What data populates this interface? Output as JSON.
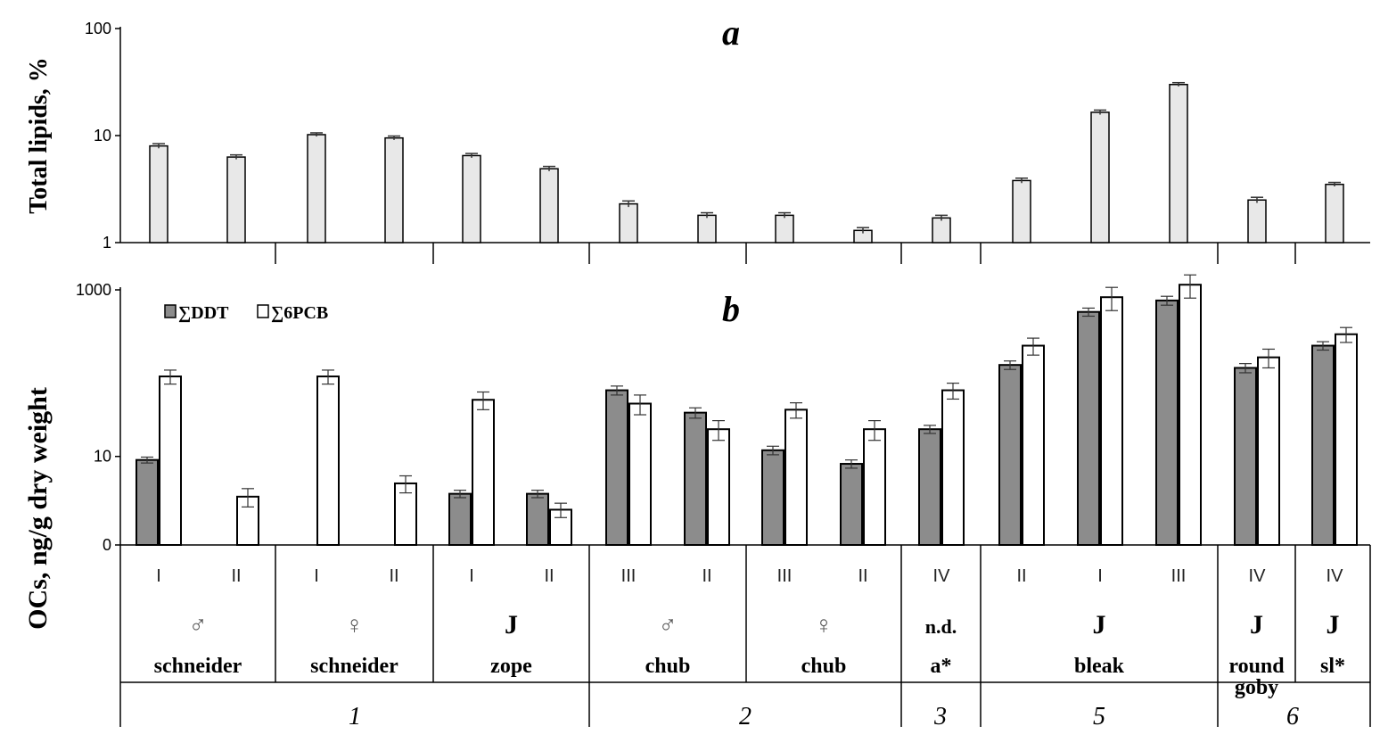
{
  "chart_data": [
    {
      "type": "bar",
      "panel_label": "a",
      "ylabel": "Total lipids, %",
      "yscale": "log",
      "ylim": [
        1,
        100
      ],
      "yticks": [
        "1",
        "10",
        "100"
      ],
      "bar_color": "#e8e8e8",
      "values": [
        8.0,
        6.3,
        10.2,
        9.5,
        6.5,
        4.9,
        2.3,
        1.8,
        1.8,
        1.3,
        1.7,
        3.8,
        16.5,
        30.0,
        2.5,
        3.5
      ],
      "errors": [
        0.4,
        0.3,
        0.4,
        0.4,
        0.3,
        0.25,
        0.15,
        0.1,
        0.1,
        0.08,
        0.1,
        0.2,
        0.8,
        1.2,
        0.15,
        0.15
      ]
    },
    {
      "type": "bar",
      "panel_label": "b",
      "ylabel": "OCs, ng/g dry weight",
      "yscale": "log1p",
      "ylim": [
        0,
        1000
      ],
      "yticks": [
        "0",
        "10",
        "1000"
      ],
      "legend_position": "top-left",
      "series": [
        {
          "name": "∑DDT",
          "color": "#8c8c8c",
          "values": [
            9.0,
            null,
            null,
            null,
            3.0,
            3.0,
            65,
            35,
            12,
            8,
            22,
            130,
            550,
            750,
            120,
            220
          ],
          "errors": [
            0.8,
            null,
            null,
            null,
            0.4,
            0.4,
            8,
            5,
            1.5,
            1,
            2.5,
            15,
            60,
            90,
            15,
            25
          ]
        },
        {
          "name": "∑6PCB",
          "color": "#ffffff",
          "values": [
            95,
            2.7,
            95,
            4.3,
            50,
            1.6,
            45,
            22,
            38,
            22,
            65,
            220,
            820,
            1150,
            160,
            300
          ],
          "errors": [
            18,
            0.9,
            18,
            1.2,
            12,
            0.5,
            12,
            6,
            8,
            6,
            14,
            50,
            250,
            350,
            40,
            60
          ]
        }
      ],
      "categories": [
        "I",
        "II",
        "I",
        "II",
        "I",
        "II",
        "III",
        "II",
        "III",
        "II",
        "IV",
        "II",
        "I",
        "III",
        "IV",
        "IV"
      ],
      "groups": [
        {
          "symbol": "♂",
          "name": "schneider",
          "span": [
            0,
            1
          ]
        },
        {
          "symbol": "♀",
          "name": "schneider",
          "span": [
            2,
            3
          ]
        },
        {
          "symbol": "J",
          "name": "zope",
          "span": [
            4,
            5
          ]
        },
        {
          "symbol": "♂",
          "name": "chub",
          "span": [
            6,
            7
          ]
        },
        {
          "symbol": "♀",
          "name": "chub",
          "span": [
            8,
            9
          ]
        },
        {
          "symbol": "n.d.",
          "name": "a*",
          "span": [
            10,
            10
          ]
        },
        {
          "symbol": "J",
          "name": "bleak",
          "span": [
            11,
            13
          ]
        },
        {
          "symbol": "J",
          "name": "round goby",
          "span": [
            14,
            14
          ]
        },
        {
          "symbol": "J",
          "name": "sl*",
          "span": [
            15,
            15
          ]
        }
      ],
      "sites": [
        {
          "label": "1",
          "span": [
            0,
            5
          ]
        },
        {
          "label": "2",
          "span": [
            6,
            9
          ]
        },
        {
          "label": "3",
          "span": [
            10,
            10
          ]
        },
        {
          "label": "5",
          "span": [
            11,
            13
          ]
        },
        {
          "label": "6",
          "span": [
            14,
            15
          ]
        }
      ]
    }
  ]
}
